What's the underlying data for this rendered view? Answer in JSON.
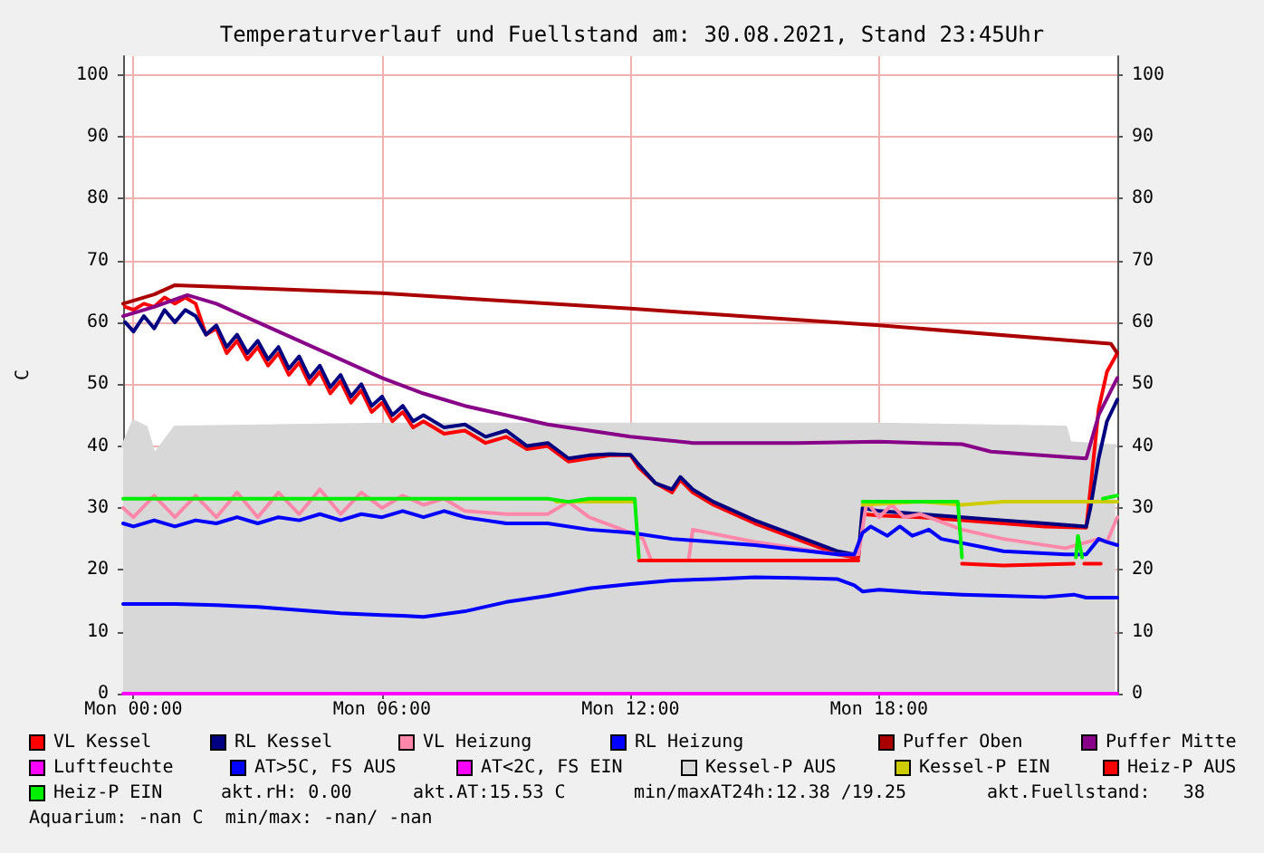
{
  "chart_data": {
    "type": "line",
    "title": "Temperaturverlauf und Fuellstand am: 30.08.2021, Stand 23:45Uhr",
    "ylabel": "C",
    "xlim": [
      "2021-08-29T23:45",
      "2021-08-30T23:45"
    ],
    "xticks": [
      {
        "value": "2021-08-30T00:00",
        "label": "Mon 00:00"
      },
      {
        "value": "2021-08-30T06:00",
        "label": "Mon 06:00"
      },
      {
        "value": "2021-08-30T12:00",
        "label": "Mon 12:00"
      },
      {
        "value": "2021-08-30T18:00",
        "label": "Mon 18:00"
      }
    ],
    "ylim": [
      0,
      103
    ],
    "yticks": [
      0,
      10,
      20,
      30,
      40,
      50,
      60,
      70,
      80,
      90,
      100
    ],
    "y2lim": [
      0,
      103
    ],
    "y2ticks": [
      0,
      10,
      20,
      30,
      40,
      50,
      60,
      70,
      80,
      90,
      100
    ],
    "grid": true,
    "legend": "bottom",
    "marker": "none",
    "line_style": "solid",
    "annotations": [
      "akt.rH: 0.00",
      "akt.AT:15.53 C",
      "min/maxAT24h:12.38 /19.25",
      "akt.Fuellstand:   38",
      "Aquarium: -nan C  min/max: -nan/ -nan"
    ],
    "series": [
      {
        "name": "VL Kessel",
        "color": "#ff0000",
        "x": [
          "2021-08-29T23:48",
          "2021-08-30T00:00",
          "2021-08-30T00:15",
          "2021-08-30T00:30",
          "2021-08-30T00:45",
          "2021-08-30T01:00",
          "2021-08-30T01:15",
          "2021-08-30T01:30",
          "2021-08-30T01:45",
          "2021-08-30T02:00",
          "2021-08-30T02:15",
          "2021-08-30T02:30",
          "2021-08-30T02:45",
          "2021-08-30T03:00",
          "2021-08-30T03:15",
          "2021-08-30T03:30",
          "2021-08-30T03:45",
          "2021-08-30T04:00",
          "2021-08-30T04:15",
          "2021-08-30T04:30",
          "2021-08-30T04:45",
          "2021-08-30T05:00",
          "2021-08-30T05:15",
          "2021-08-30T05:30",
          "2021-08-30T05:45",
          "2021-08-30T06:00",
          "2021-08-30T06:15",
          "2021-08-30T06:30",
          "2021-08-30T06:45",
          "2021-08-30T07:00",
          "2021-08-30T07:30",
          "2021-08-30T08:00",
          "2021-08-30T08:30",
          "2021-08-30T09:00",
          "2021-08-30T09:30",
          "2021-08-30T10:00",
          "2021-08-30T10:30",
          "2021-08-30T11:00",
          "2021-08-30T11:30",
          "2021-08-30T12:00",
          "2021-08-30T12:12",
          "2021-08-30T12:36",
          "2021-08-30T13:00",
          "2021-08-30T13:12",
          "2021-08-30T13:30",
          "2021-08-30T14:00",
          "2021-08-30T15:00",
          "2021-08-30T16:00",
          "2021-08-30T17:00",
          "2021-08-30T17:24",
          "2021-08-30T17:30",
          "2021-08-30T17:36",
          "2021-08-30T18:00",
          "2021-08-30T19:00",
          "2021-08-30T20:00",
          "2021-08-30T21:00",
          "2021-08-30T22:00",
          "2021-08-30T23:00",
          "2021-08-30T23:06",
          "2021-08-30T23:18",
          "2021-08-30T23:30",
          "2021-08-30T23:45"
        ],
        "values": [
          62.5,
          62,
          63,
          62.5,
          64,
          63,
          64,
          63,
          58,
          59,
          55,
          57,
          54,
          56,
          53,
          55,
          51.5,
          53.5,
          50,
          52,
          48.5,
          50.5,
          47,
          49,
          45.5,
          47,
          44,
          45.5,
          43,
          44,
          42,
          42.5,
          40.5,
          41.5,
          39.5,
          40,
          37.5,
          38,
          38.5,
          38.5,
          36.5,
          34,
          32.5,
          34.5,
          32.5,
          30.5,
          27.5,
          25,
          22.5,
          22,
          22,
          29,
          28.8,
          28.5,
          28,
          27.5,
          27,
          26.8,
          33,
          46,
          52,
          55
        ]
      },
      {
        "name": "RL Kessel",
        "color": "#000080",
        "x": [
          "2021-08-29T23:48",
          "2021-08-30T00:00",
          "2021-08-30T00:15",
          "2021-08-30T00:30",
          "2021-08-30T00:45",
          "2021-08-30T01:00",
          "2021-08-30T01:15",
          "2021-08-30T01:30",
          "2021-08-30T01:45",
          "2021-08-30T02:00",
          "2021-08-30T02:15",
          "2021-08-30T02:30",
          "2021-08-30T02:45",
          "2021-08-30T03:00",
          "2021-08-30T03:15",
          "2021-08-30T03:30",
          "2021-08-30T03:45",
          "2021-08-30T04:00",
          "2021-08-30T04:15",
          "2021-08-30T04:30",
          "2021-08-30T04:45",
          "2021-08-30T05:00",
          "2021-08-30T05:15",
          "2021-08-30T05:30",
          "2021-08-30T05:45",
          "2021-08-30T06:00",
          "2021-08-30T06:15",
          "2021-08-30T06:30",
          "2021-08-30T06:45",
          "2021-08-30T07:00",
          "2021-08-30T07:30",
          "2021-08-30T08:00",
          "2021-08-30T08:30",
          "2021-08-30T09:00",
          "2021-08-30T09:30",
          "2021-08-30T10:00",
          "2021-08-30T10:30",
          "2021-08-30T11:00",
          "2021-08-30T11:30",
          "2021-08-30T12:00",
          "2021-08-30T12:12",
          "2021-08-30T12:36",
          "2021-08-30T13:00",
          "2021-08-30T13:12",
          "2021-08-30T13:30",
          "2021-08-30T14:00",
          "2021-08-30T15:00",
          "2021-08-30T16:00",
          "2021-08-30T17:00",
          "2021-08-30T17:24",
          "2021-08-30T17:30",
          "2021-08-30T17:36",
          "2021-08-30T18:00",
          "2021-08-30T19:00",
          "2021-08-30T20:00",
          "2021-08-30T21:00",
          "2021-08-30T22:00",
          "2021-08-30T23:00",
          "2021-08-30T23:06",
          "2021-08-30T23:18",
          "2021-08-30T23:30",
          "2021-08-30T23:45"
        ],
        "values": [
          60,
          58.5,
          61,
          59,
          62,
          60,
          62,
          61,
          58,
          59.5,
          56,
          58,
          55,
          57,
          54,
          56,
          52.5,
          54.5,
          51,
          53,
          49.5,
          51.5,
          48,
          50,
          46.5,
          48,
          45,
          46.5,
          44,
          45,
          43,
          43.5,
          41.5,
          42.5,
          40,
          40.5,
          38,
          38.5,
          38.7,
          38.6,
          37,
          34,
          33,
          35,
          33,
          31,
          28,
          25.5,
          23,
          22.5,
          22.5,
          30,
          29.5,
          29,
          28.5,
          28,
          27.5,
          27,
          30,
          38,
          44,
          47.5
        ]
      },
      {
        "name": "VL Heizung",
        "color": "#ff88aa",
        "x": [
          "2021-08-29T23:45",
          "2021-08-30T00:00",
          "2021-08-30T00:30",
          "2021-08-30T01:00",
          "2021-08-30T01:30",
          "2021-08-30T02:00",
          "2021-08-30T02:30",
          "2021-08-30T03:00",
          "2021-08-30T03:30",
          "2021-08-30T04:00",
          "2021-08-30T04:30",
          "2021-08-30T05:00",
          "2021-08-30T05:30",
          "2021-08-30T06:00",
          "2021-08-30T06:30",
          "2021-08-30T07:00",
          "2021-08-30T07:30",
          "2021-08-30T08:00",
          "2021-08-30T09:00",
          "2021-08-30T10:00",
          "2021-08-30T10:30",
          "2021-08-30T11:00",
          "2021-08-30T12:00",
          "2021-08-30T12:18",
          "2021-08-30T12:30",
          "2021-08-30T13:24",
          "2021-08-30T13:30",
          "2021-08-30T15:00",
          "2021-08-30T17:00",
          "2021-08-30T17:30",
          "2021-08-30T17:42",
          "2021-08-30T18:00",
          "2021-08-30T18:18",
          "2021-08-30T18:36",
          "2021-08-30T19:00",
          "2021-08-30T20:00",
          "2021-08-30T21:00",
          "2021-08-30T22:30",
          "2021-08-30T23:18",
          "2021-08-30T23:30",
          "2021-08-30T23:45"
        ],
        "values": [
          30,
          28.5,
          32,
          28.5,
          32,
          28.5,
          32.5,
          28.5,
          32.5,
          29,
          33,
          29,
          32.5,
          30,
          32,
          30.5,
          31.5,
          29.5,
          29,
          29,
          31,
          28.5,
          26,
          25,
          21.5,
          21.5,
          26.5,
          24.5,
          22.5,
          22.5,
          31,
          28.5,
          30.5,
          28.5,
          29,
          26.5,
          25,
          23.5,
          25,
          24.5,
          28.5
        ]
      },
      {
        "name": "RL Heizung",
        "color": "#0000ff",
        "x": [
          "2021-08-29T23:45",
          "2021-08-30T00:00",
          "2021-08-30T00:30",
          "2021-08-30T01:00",
          "2021-08-30T01:30",
          "2021-08-30T02:00",
          "2021-08-30T02:30",
          "2021-08-30T03:00",
          "2021-08-30T03:30",
          "2021-08-30T04:00",
          "2021-08-30T04:30",
          "2021-08-30T05:00",
          "2021-08-30T05:30",
          "2021-08-30T06:00",
          "2021-08-30T06:30",
          "2021-08-30T07:00",
          "2021-08-30T07:30",
          "2021-08-30T08:00",
          "2021-08-30T08:30",
          "2021-08-30T09:00",
          "2021-08-30T10:00",
          "2021-08-30T11:00",
          "2021-08-30T12:00",
          "2021-08-30T13:00",
          "2021-08-30T15:00",
          "2021-08-30T17:00",
          "2021-08-30T17:24",
          "2021-08-30T17:36",
          "2021-08-30T17:48",
          "2021-08-30T18:12",
          "2021-08-30T18:30",
          "2021-08-30T18:48",
          "2021-08-30T19:12",
          "2021-08-30T19:30",
          "2021-08-30T21:00",
          "2021-08-30T22:30",
          "2021-08-30T23:00",
          "2021-08-30T23:18",
          "2021-08-30T23:30",
          "2021-08-30T23:45"
        ],
        "values": [
          27.5,
          27,
          28,
          27,
          28,
          27.5,
          28.5,
          27.5,
          28.5,
          28,
          29,
          28,
          29,
          28.5,
          29.5,
          28.5,
          29.5,
          28.5,
          28,
          27.5,
          27.5,
          26.5,
          26,
          25,
          24,
          22.5,
          22.5,
          26,
          27,
          25.5,
          27,
          25.5,
          26.5,
          25,
          23,
          22.5,
          22.5,
          25,
          24.5,
          24
        ]
      },
      {
        "name": "Puffer Oben",
        "color": "#aa0000",
        "x": [
          "2021-08-29T23:45",
          "2021-08-30T00:30",
          "2021-08-30T01:00",
          "2021-08-30T06:00",
          "2021-08-30T12:00",
          "2021-08-30T18:00",
          "2021-08-30T23:30",
          "2021-08-30T23:36",
          "2021-08-30T23:45"
        ],
        "values": [
          63,
          64.5,
          66,
          64.7,
          62.2,
          59.5,
          56.6,
          56.5,
          55
        ]
      },
      {
        "name": "Puffer Mitte",
        "color": "#880088",
        "x": [
          "2021-08-29T23:45",
          "2021-08-30T00:30",
          "2021-08-30T01:18",
          "2021-08-30T02:00",
          "2021-08-30T03:00",
          "2021-08-30T04:30",
          "2021-08-30T06:00",
          "2021-08-30T07:00",
          "2021-08-30T08:00",
          "2021-08-30T10:00",
          "2021-08-30T12:00",
          "2021-08-30T13:30",
          "2021-08-30T16:00",
          "2021-08-30T18:00",
          "2021-08-30T20:00",
          "2021-08-30T20:42",
          "2021-08-30T22:36",
          "2021-08-30T23:00",
          "2021-08-30T23:18",
          "2021-08-30T23:45"
        ],
        "values": [
          61,
          62.5,
          64.4,
          63,
          60,
          55.5,
          51,
          48.5,
          46.5,
          43.5,
          41.5,
          40.5,
          40.5,
          40.7,
          40.3,
          39.1,
          38.2,
          38,
          45,
          51
        ]
      },
      {
        "name": "Luftfeuchte",
        "color": "#ff00ff",
        "x": [
          "2021-08-29T23:45",
          "2021-08-30T23:45"
        ],
        "values": [
          0,
          0
        ]
      },
      {
        "name": "AT>5C, FS AUS",
        "color": "#0000ff",
        "x": [
          "2021-08-29T23:45",
          "2021-08-30T01:00",
          "2021-08-30T02:00",
          "2021-08-30T03:00",
          "2021-08-30T04:00",
          "2021-08-30T05:00",
          "2021-08-30T06:00",
          "2021-08-30T06:30",
          "2021-08-30T07:00",
          "2021-08-30T08:00",
          "2021-08-30T09:00",
          "2021-08-30T10:00",
          "2021-08-30T11:00",
          "2021-08-30T12:00",
          "2021-08-30T13:00",
          "2021-08-30T14:00",
          "2021-08-30T15:00",
          "2021-08-30T16:00",
          "2021-08-30T17:00",
          "2021-08-30T17:24",
          "2021-08-30T17:36",
          "2021-08-30T18:00",
          "2021-08-30T19:00",
          "2021-08-30T20:00",
          "2021-08-30T21:00",
          "2021-08-30T22:00",
          "2021-08-30T22:42",
          "2021-08-30T23:00",
          "2021-08-30T23:45"
        ],
        "values": [
          14.5,
          14.5,
          14.3,
          14,
          13.5,
          13,
          12.7,
          12.6,
          12.4,
          13.3,
          14.8,
          15.8,
          17,
          17.7,
          18.3,
          18.5,
          18.8,
          18.7,
          18.5,
          17.5,
          16.5,
          16.8,
          16.3,
          16,
          15.8,
          15.6,
          16,
          15.5,
          15.5
        ]
      },
      {
        "name": "AT<2C, FS EIN",
        "color": "#ff00ff"
      },
      {
        "name": "Kessel-P AUS",
        "type": "area",
        "color": "#d8d8d8",
        "x": [
          "2021-08-29T23:45",
          "2021-08-30T00:00",
          "2021-08-30T00:18",
          "2021-08-30T00:30",
          "2021-08-30T01:00",
          "2021-08-30T06:00",
          "2021-08-30T12:00",
          "2021-08-30T18:00",
          "2021-08-30T22:30",
          "2021-08-30T22:36",
          "2021-08-30T23:36",
          "2021-08-30T23:42"
        ],
        "values": [
          40,
          44,
          43,
          38.5,
          43,
          43.5,
          43.5,
          43.5,
          43,
          40.5,
          40,
          40
        ]
      },
      {
        "name": "Kessel-P EIN",
        "color": "#cccc00",
        "x": [
          "2021-08-30T10:12",
          "2021-08-30T12:06",
          "2021-08-30T12:09",
          "2021-08-30T17:36",
          "2021-08-30T19:00",
          "2021-08-30T20:00",
          "2021-08-30T21:00",
          "2021-08-30T23:00",
          "2021-08-30T23:45"
        ],
        "values": [
          31,
          31,
          null,
          30.5,
          31,
          30.5,
          31,
          31,
          31
        ]
      },
      {
        "name": "Heiz-P AUS",
        "color": "#ff0000",
        "x": [
          "2021-08-30T12:12",
          "2021-08-30T17:30",
          "2021-08-30T17:33",
          "2021-08-30T20:00",
          "2021-08-30T21:00",
          "2021-08-30T22:42",
          "2021-08-30T22:45",
          "2021-08-30T22:57",
          "2021-08-30T23:21"
        ],
        "values": [
          21.5,
          21.5,
          null,
          21,
          20.7,
          21,
          null,
          21,
          21
        ]
      },
      {
        "name": "Heiz-P EIN",
        "color": "#00ee00",
        "x": [
          "2021-08-29T23:45",
          "2021-08-30T10:00",
          "2021-08-30T10:30",
          "2021-08-30T11:00",
          "2021-08-30T12:06",
          "2021-08-30T12:12",
          "2021-08-30T12:15",
          "2021-08-30T17:30",
          "2021-08-30T17:36",
          "2021-08-30T19:54",
          "2021-08-30T20:00",
          "2021-08-30T20:03",
          "2021-08-30T22:42",
          "2021-08-30T22:45",
          "2021-08-30T22:48",
          "2021-08-30T22:54",
          "2021-08-30T22:57",
          "2021-08-30T23:21",
          "2021-08-30T23:24",
          "2021-08-30T23:45"
        ],
        "values": [
          31.5,
          31.5,
          31,
          31.5,
          31.5,
          22,
          null,
          null,
          31,
          31,
          22,
          null,
          null,
          22,
          25.5,
          22,
          null,
          null,
          31.5,
          32
        ]
      }
    ]
  }
}
